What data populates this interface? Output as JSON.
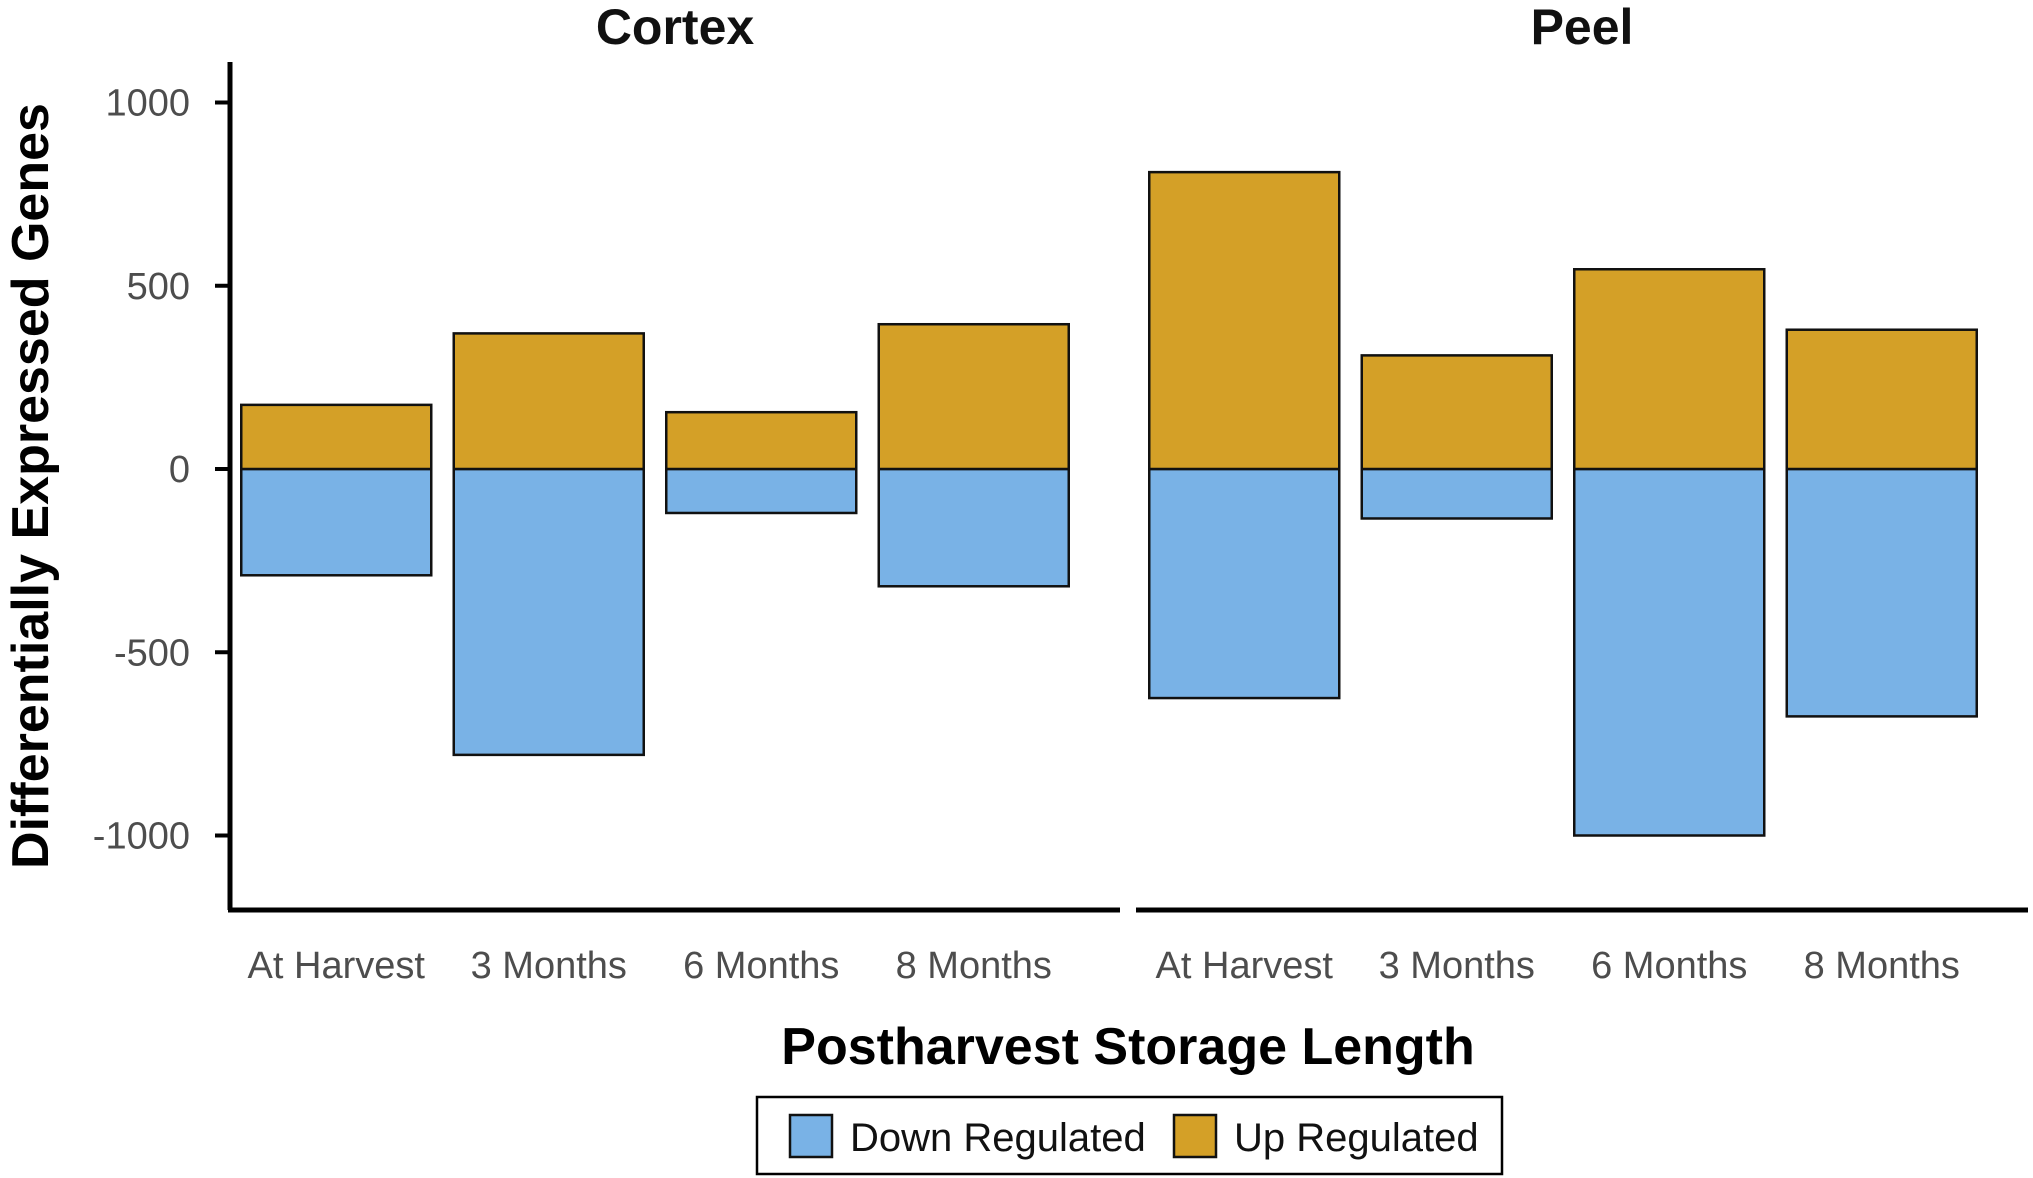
{
  "chart_data": {
    "type": "bar",
    "ylabel": "Differentially Expressed Genes",
    "xlabel": "Postharvest Storage Length",
    "ylim": [
      -1100,
      1100
    ],
    "yticks": [
      1000,
      500,
      0,
      -500,
      -1000
    ],
    "ytick_labels": [
      "1000",
      "500",
      "0",
      "-500",
      "-1000"
    ],
    "categories": [
      "At Harvest",
      "3 Months",
      "6 Months",
      "8 Months"
    ],
    "panels": [
      {
        "title": "Cortex",
        "series": [
          {
            "name": "Down Regulated",
            "values": [
              -290,
              -780,
              -120,
              -320
            ]
          },
          {
            "name": "Up Regulated",
            "values": [
              175,
              370,
              155,
              395
            ]
          }
        ]
      },
      {
        "title": "Peel",
        "series": [
          {
            "name": "Down Regulated",
            "values": [
              -625,
              -135,
              -1000,
              -675
            ]
          },
          {
            "name": "Up Regulated",
            "values": [
              810,
              310,
              545,
              380
            ]
          }
        ]
      }
    ],
    "legend": {
      "position": "bottom",
      "entries": [
        {
          "label": "Down Regulated",
          "color": "#79B2E6"
        },
        {
          "label": "Up Regulated",
          "color": "#D4A027"
        }
      ]
    }
  }
}
